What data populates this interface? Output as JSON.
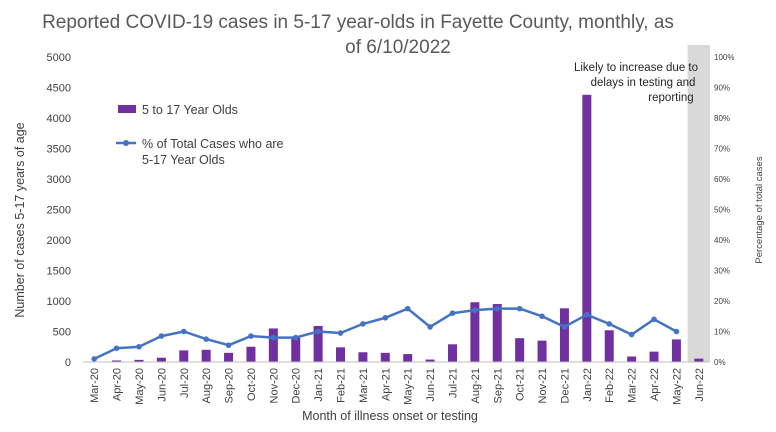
{
  "chart_data": {
    "type": "bar",
    "title_lines": [
      "Reported COVID-19 cases in 5-17 year-olds in Fayette County, monthly, as",
      "of 6/10/2022"
    ],
    "xlabel": "Month of illness onset or testing",
    "ylabel": "Number of cases 5-17 years of age",
    "y2label": "Percentage of total cases",
    "ylim": [
      0,
      5000
    ],
    "y2lim": [
      0,
      100
    ],
    "yticks": [
      "0",
      "500",
      "1000",
      "1500",
      "2000",
      "2500",
      "3000",
      "3500",
      "4000",
      "4500",
      "5000"
    ],
    "y2ticks": [
      "0%",
      "10%",
      "20%",
      "30%",
      "40%",
      "50%",
      "60%",
      "70%",
      "80%",
      "90%",
      "100%"
    ],
    "categories": [
      "Mar-20",
      "Apr-20",
      "May-20",
      "Jun-20",
      "Jul-20",
      "Aug-20",
      "Sep-20",
      "Oct-20",
      "Nov-20",
      "Dec-20",
      "Jan-21",
      "Feb-21",
      "Mar-21",
      "Apr-21",
      "May-21",
      "Jun-21",
      "Jul-21",
      "Aug-21",
      "Sep-21",
      "Oct-21",
      "Nov-21",
      "Dec-21",
      "Jan-22",
      "Feb-22",
      "Mar-22",
      "Apr-22",
      "May-22",
      "Jun-22"
    ],
    "series": [
      {
        "name": "5 to 17 Year Olds",
        "kind": "bar",
        "axis": "left",
        "color": "#7030a0",
        "values": [
          5,
          25,
          35,
          70,
          190,
          200,
          150,
          250,
          550,
          420,
          590,
          240,
          160,
          150,
          130,
          40,
          290,
          980,
          950,
          390,
          350,
          880,
          4380,
          520,
          90,
          170,
          370,
          55
        ]
      },
      {
        "name": "% of Total Cases who are 5-17 Year Olds",
        "name_lines": [
          "% of Total Cases who are",
          "5-17 Year Olds"
        ],
        "kind": "line",
        "axis": "right",
        "color": "#4472c4",
        "values": [
          1,
          4.5,
          5,
          8.5,
          10,
          7.5,
          5.5,
          8.5,
          8,
          8,
          10,
          9.5,
          12.5,
          14.5,
          17.5,
          11.5,
          16,
          17,
          17.5,
          17.5,
          15,
          11.5,
          15.5,
          12.5,
          9,
          14,
          10,
          null
        ]
      }
    ],
    "shaded_category": "Jun-22",
    "annotation_lines": [
      "Likely to increase due to",
      "delays in testing and",
      "reporting"
    ],
    "legend_position": "top-left",
    "grid": false
  }
}
